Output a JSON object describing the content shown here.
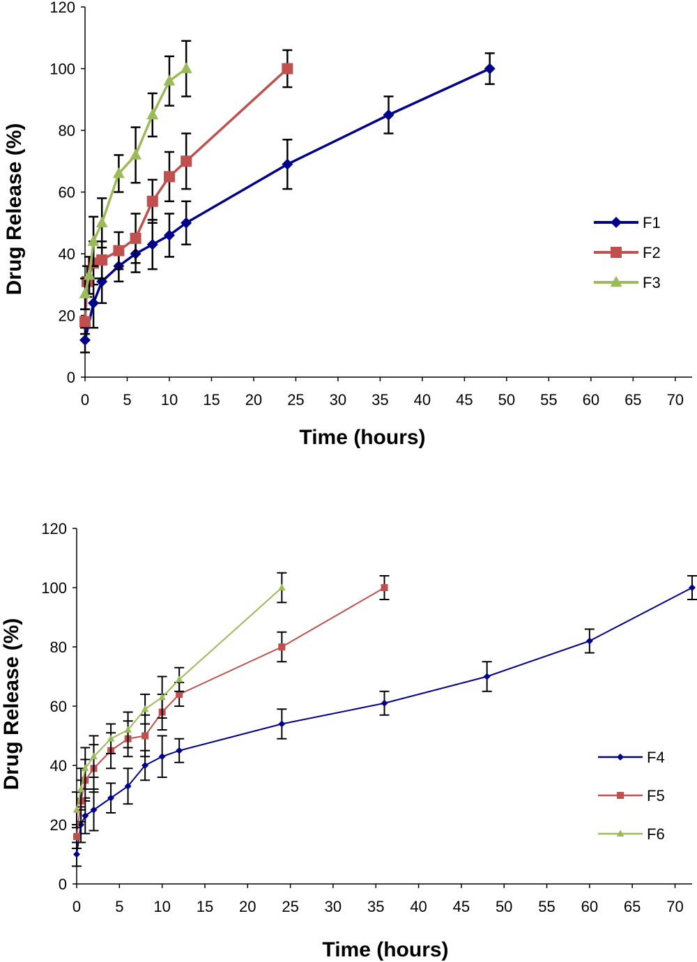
{
  "chart_data": [
    {
      "type": "line",
      "xlabel": "Time (hours)",
      "ylabel": "Drug Release (%)",
      "xlim": [
        0,
        72
      ],
      "ylim": [
        0,
        120
      ],
      "xticks": [
        0,
        5,
        10,
        15,
        20,
        25,
        30,
        35,
        40,
        45,
        50,
        55,
        60,
        65,
        70
      ],
      "yticks": [
        0,
        20,
        40,
        60,
        80,
        100,
        120
      ],
      "grid": false,
      "legend_position": "right",
      "series": [
        {
          "name": "F1",
          "color": "#00008b",
          "marker": "diamond",
          "x": [
            0,
            1,
            2,
            4,
            6,
            8,
            10,
            12,
            24,
            36,
            48
          ],
          "y": [
            12,
            24,
            31,
            36,
            40,
            43,
            46,
            50,
            69,
            85,
            100
          ],
          "err": [
            4,
            8,
            7,
            5,
            6,
            8,
            7,
            7,
            8,
            6,
            5
          ]
        },
        {
          "name": "F2",
          "color": "#c0504d",
          "marker": "square",
          "x": [
            0,
            0.25,
            1,
            2,
            4,
            6,
            8,
            10,
            12,
            24
          ],
          "y": [
            18,
            31,
            37,
            38,
            41,
            45,
            57,
            65,
            70,
            100
          ],
          "err": [
            4,
            5,
            7,
            6,
            6,
            8,
            7,
            8,
            9,
            6
          ]
        },
        {
          "name": "F3",
          "color": "#9bbb59",
          "marker": "triangle",
          "x": [
            0,
            0.5,
            1,
            2,
            4,
            6,
            8,
            10,
            12
          ],
          "y": [
            27,
            33,
            44,
            50,
            66,
            72,
            85,
            96,
            100
          ],
          "err": [
            5,
            6,
            8,
            8,
            6,
            9,
            7,
            8,
            9
          ]
        }
      ]
    },
    {
      "type": "line",
      "xlabel": "Time (hours)",
      "ylabel": "Drug Release (%)",
      "xlim": [
        0,
        72
      ],
      "ylim": [
        0,
        120
      ],
      "xticks": [
        0,
        5,
        10,
        15,
        20,
        25,
        30,
        35,
        40,
        45,
        50,
        55,
        60,
        65,
        70
      ],
      "yticks": [
        0,
        20,
        40,
        60,
        80,
        100,
        120
      ],
      "grid": false,
      "legend_position": "right",
      "series": [
        {
          "name": "F4",
          "color": "#00008b",
          "marker": "diamond",
          "x": [
            0,
            0.5,
            1,
            2,
            4,
            6,
            8,
            10,
            12,
            24,
            36,
            48,
            60,
            72
          ],
          "y": [
            10,
            20,
            23,
            25,
            29,
            33,
            40,
            43,
            45,
            54,
            61,
            70,
            82,
            100
          ],
          "err": [
            4,
            6,
            6,
            7,
            5,
            6,
            5,
            7,
            4,
            5,
            4,
            5,
            4,
            4
          ]
        },
        {
          "name": "F5",
          "color": "#c0504d",
          "marker": "square",
          "x": [
            0,
            0.5,
            1,
            2,
            4,
            6,
            8,
            10,
            12,
            24,
            36
          ],
          "y": [
            16,
            28,
            35,
            39,
            45,
            49,
            50,
            58,
            64,
            80,
            100
          ],
          "err": [
            4,
            7,
            7,
            8,
            6,
            6,
            7,
            6,
            4,
            5,
            4
          ]
        },
        {
          "name": "F6",
          "color": "#9bbb59",
          "marker": "triangle",
          "x": [
            0,
            0.5,
            1,
            2,
            4,
            6,
            8,
            10,
            12,
            24
          ],
          "y": [
            25,
            32,
            39,
            43,
            49,
            52,
            59,
            63,
            69,
            100
          ],
          "err": [
            6,
            7,
            7,
            7,
            5,
            6,
            5,
            7,
            4,
            5
          ]
        }
      ]
    }
  ]
}
